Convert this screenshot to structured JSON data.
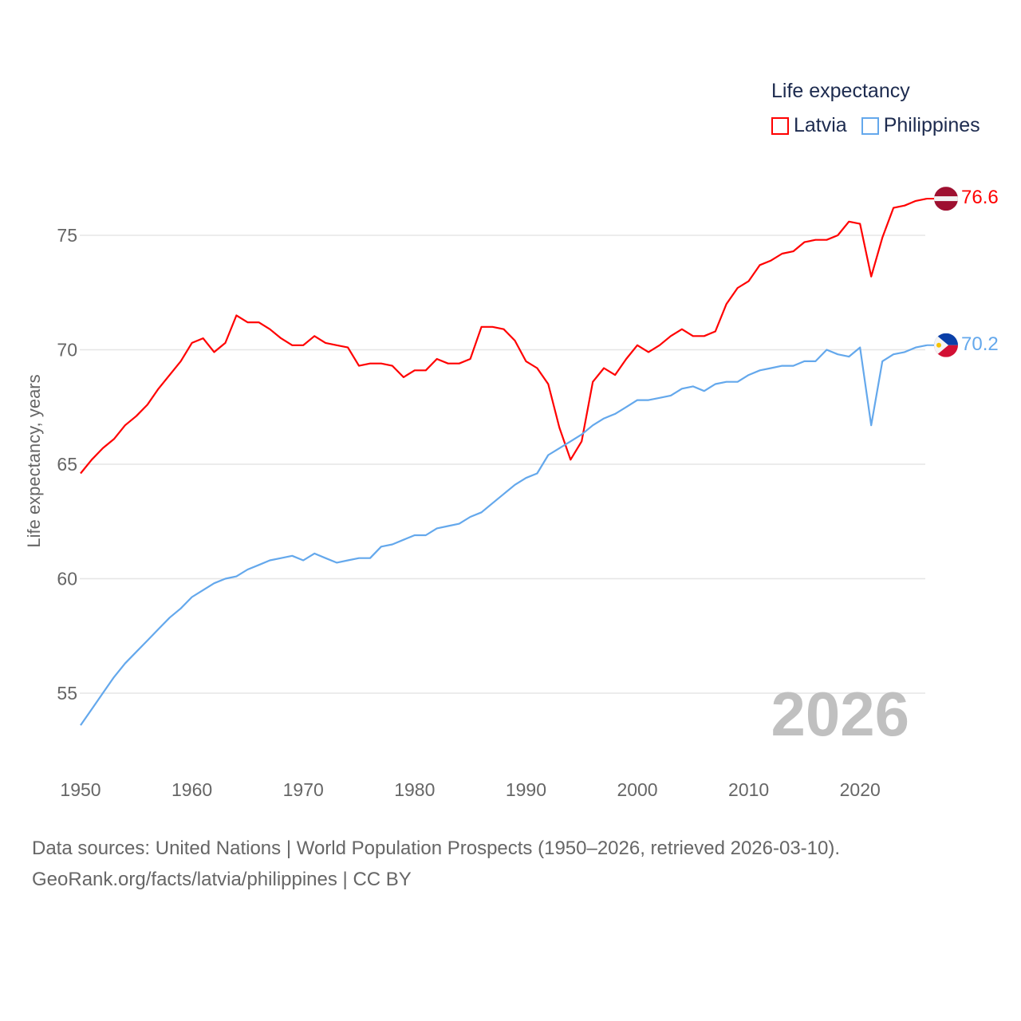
{
  "chart_data": {
    "type": "line",
    "title": "Life expectancy",
    "ylabel": "Life expectancy, years",
    "xlabel": "",
    "xlim": [
      1950,
      2026
    ],
    "ylim": [
      53.2,
      77.2
    ],
    "yticks": [
      55,
      60,
      65,
      70,
      75
    ],
    "xticks": [
      1950,
      1960,
      1970,
      1980,
      1990,
      2000,
      2010,
      2020
    ],
    "grid": true,
    "legend_placement": "top-right",
    "x_start": 1950,
    "series": [
      {
        "name": "Latvia",
        "color": "#ff0000",
        "end_label": "76.6",
        "values": [
          64.6,
          65.2,
          65.7,
          66.1,
          66.7,
          67.1,
          67.6,
          68.3,
          68.9,
          69.5,
          70.3,
          70.5,
          69.9,
          70.3,
          71.5,
          71.2,
          71.2,
          70.9,
          70.5,
          70.2,
          70.2,
          70.6,
          70.3,
          70.2,
          70.1,
          69.3,
          69.4,
          69.4,
          69.3,
          68.8,
          69.1,
          69.1,
          69.6,
          69.4,
          69.4,
          69.6,
          71.0,
          71.0,
          70.9,
          70.4,
          69.5,
          69.2,
          68.5,
          66.6,
          65.2,
          66.0,
          68.6,
          69.2,
          68.9,
          69.6,
          70.2,
          69.9,
          70.2,
          70.6,
          70.9,
          70.6,
          70.6,
          70.8,
          72.0,
          72.7,
          73.0,
          73.7,
          73.9,
          74.2,
          74.3,
          74.7,
          74.8,
          74.8,
          75.0,
          75.6,
          75.5,
          73.2,
          74.9,
          76.2,
          76.3,
          76.5,
          76.6
        ]
      },
      {
        "name": "Philippines",
        "color": "#64a8ec",
        "end_label": "70.2",
        "values": [
          53.6,
          54.3,
          55.0,
          55.7,
          56.3,
          56.8,
          57.3,
          57.8,
          58.3,
          58.7,
          59.2,
          59.5,
          59.8,
          60.0,
          60.1,
          60.4,
          60.6,
          60.8,
          60.9,
          61.0,
          60.8,
          61.1,
          60.9,
          60.7,
          60.8,
          60.9,
          60.9,
          61.4,
          61.5,
          61.7,
          61.9,
          61.9,
          62.2,
          62.3,
          62.4,
          62.7,
          62.9,
          63.3,
          63.7,
          64.1,
          64.4,
          64.6,
          65.4,
          65.7,
          66.0,
          66.3,
          66.7,
          67.0,
          67.2,
          67.5,
          67.8,
          67.8,
          67.9,
          68.0,
          68.3,
          68.4,
          68.2,
          68.5,
          68.6,
          68.6,
          68.9,
          69.1,
          69.2,
          69.3,
          69.3,
          69.5,
          69.5,
          70.0,
          69.8,
          69.7,
          70.1,
          66.7,
          69.5,
          69.8,
          69.9,
          70.1,
          70.2
        ]
      }
    ]
  },
  "legend": {
    "title": "Life expectancy",
    "items": [
      "Latvia",
      "Philippines"
    ]
  },
  "year_label": "2026",
  "source": {
    "line1": "Data sources: United Nations | World Population Prospects (1950–2026, retrieved 2026-03-10).",
    "line2": "GeoRank.org/facts/latvia/philippines | CC BY"
  }
}
